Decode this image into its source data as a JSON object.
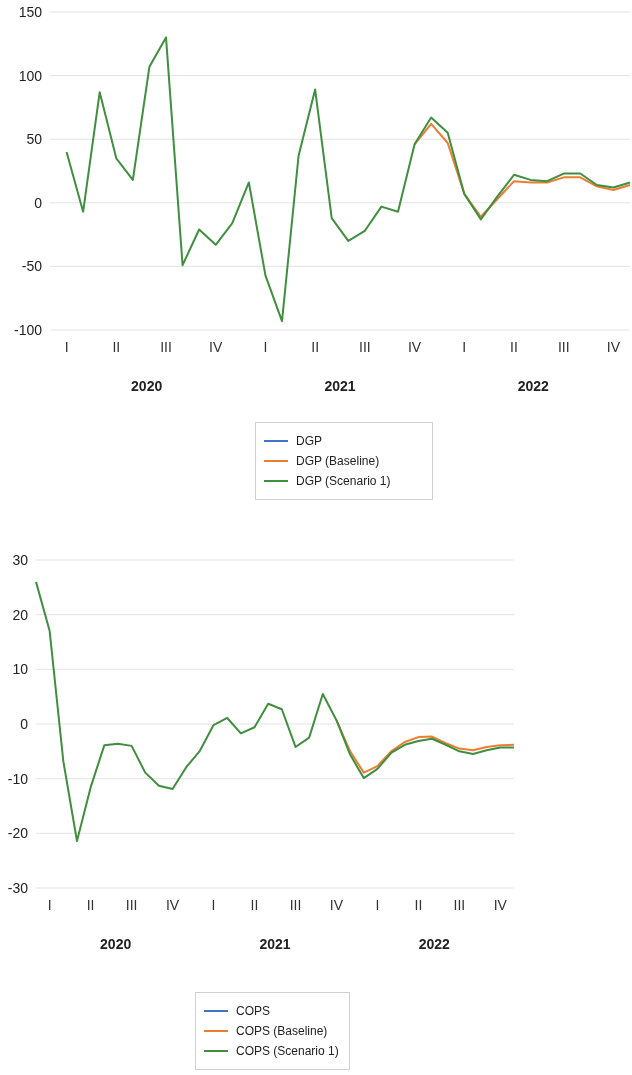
{
  "chart_data": [
    {
      "type": "line",
      "categories": [
        null,
        "I",
        null,
        null,
        "II",
        null,
        null,
        "III",
        null,
        null,
        "IV",
        null,
        null,
        "I",
        null,
        null,
        "II",
        null,
        null,
        "III",
        null,
        null,
        "IV",
        null,
        null,
        "I",
        null,
        null,
        "II",
        null,
        null,
        "III",
        null,
        null,
        "IV",
        null
      ],
      "series": [
        {
          "name": "DGP",
          "color": "#4472c4",
          "values": [
            null,
            null,
            null,
            null,
            null,
            null,
            null,
            null,
            null,
            null,
            null,
            null,
            null,
            null,
            null,
            null,
            null,
            null,
            null,
            null,
            null,
            null,
            null,
            null,
            null,
            null,
            null,
            null,
            null,
            null,
            null,
            null,
            null,
            null,
            null,
            null
          ]
        },
        {
          "name": "DGP (Baseline)",
          "color": "#ed7d31",
          "values": [
            null,
            null,
            null,
            null,
            null,
            null,
            null,
            null,
            null,
            null,
            null,
            null,
            null,
            null,
            null,
            null,
            null,
            null,
            null,
            null,
            null,
            null,
            46,
            62,
            47,
            7,
            -11,
            3,
            17,
            16,
            16,
            20,
            20,
            13,
            10,
            14
          ]
        },
        {
          "name": "DGP (Scenario 1)",
          "color": "#3f8f3f",
          "values": [
            null,
            40,
            -7,
            87,
            35,
            18,
            107,
            130,
            -49,
            -21,
            -33,
            -16,
            16,
            -57,
            -93,
            37,
            89,
            -12,
            -30,
            -22,
            -3,
            -7,
            46,
            67,
            55,
            7,
            -13,
            5,
            22,
            18,
            17,
            23,
            23,
            14,
            12,
            16
          ]
        }
      ],
      "ylim": [
        -100,
        150
      ],
      "yticks": [
        -100,
        -50,
        0,
        50,
        100,
        150
      ],
      "annotations": [
        "2020",
        "2021",
        "2022"
      ],
      "grid": "y",
      "legend": "bottom"
    },
    {
      "type": "line",
      "categories": [
        null,
        "I",
        null,
        null,
        "II",
        null,
        null,
        "III",
        null,
        null,
        "IV",
        null,
        null,
        "I",
        null,
        null,
        "II",
        null,
        null,
        "III",
        null,
        null,
        "IV",
        null,
        null,
        "I",
        null,
        null,
        "II",
        null,
        null,
        "III",
        null,
        null,
        "IV",
        null
      ],
      "series": [
        {
          "name": "COPS",
          "color": "#4472c4",
          "values": [
            null,
            null,
            null,
            null,
            null,
            null,
            null,
            null,
            null,
            null,
            null,
            null,
            null,
            null,
            null,
            null,
            null,
            null,
            null,
            null,
            null,
            null,
            null,
            null,
            null,
            null,
            null,
            null,
            null,
            null,
            null,
            null,
            null,
            null,
            null,
            null
          ]
        },
        {
          "name": "COPS (Baseline)",
          "color": "#ed7d31",
          "values": [
            null,
            null,
            null,
            null,
            null,
            null,
            null,
            null,
            null,
            null,
            null,
            null,
            null,
            null,
            null,
            null,
            null,
            null,
            null,
            null,
            null,
            null,
            0.7,
            -5,
            -8.9,
            -7.7,
            -5,
            -3.3,
            -2.4,
            -2.3,
            -3.5,
            -4.5,
            -4.8,
            -4.2,
            -3.9,
            -3.8
          ]
        },
        {
          "name": "COPS (Scenario 1)",
          "color": "#3f8f3f",
          "values": [
            26,
            17,
            -6.8,
            -21.4,
            -11.6,
            -3.9,
            -3.6,
            -4,
            -8.9,
            -11.3,
            -11.9,
            -7.9,
            -4.9,
            -0.2,
            1.1,
            -1.7,
            -0.6,
            3.7,
            2.7,
            -4.2,
            -2.5,
            5.5,
            0.7,
            -5.6,
            -9.9,
            -8.2,
            -5.3,
            -3.8,
            -3.1,
            -2.7,
            -3.8,
            -5,
            -5.5,
            -4.8,
            -4.3,
            -4.3
          ]
        }
      ],
      "ylim": [
        -30,
        30
      ],
      "yticks": [
        -30,
        -20,
        -10,
        0,
        10,
        20,
        30
      ],
      "annotations": [
        "2020",
        "2021",
        "2022"
      ],
      "grid": "y",
      "legend": "bottom"
    }
  ]
}
